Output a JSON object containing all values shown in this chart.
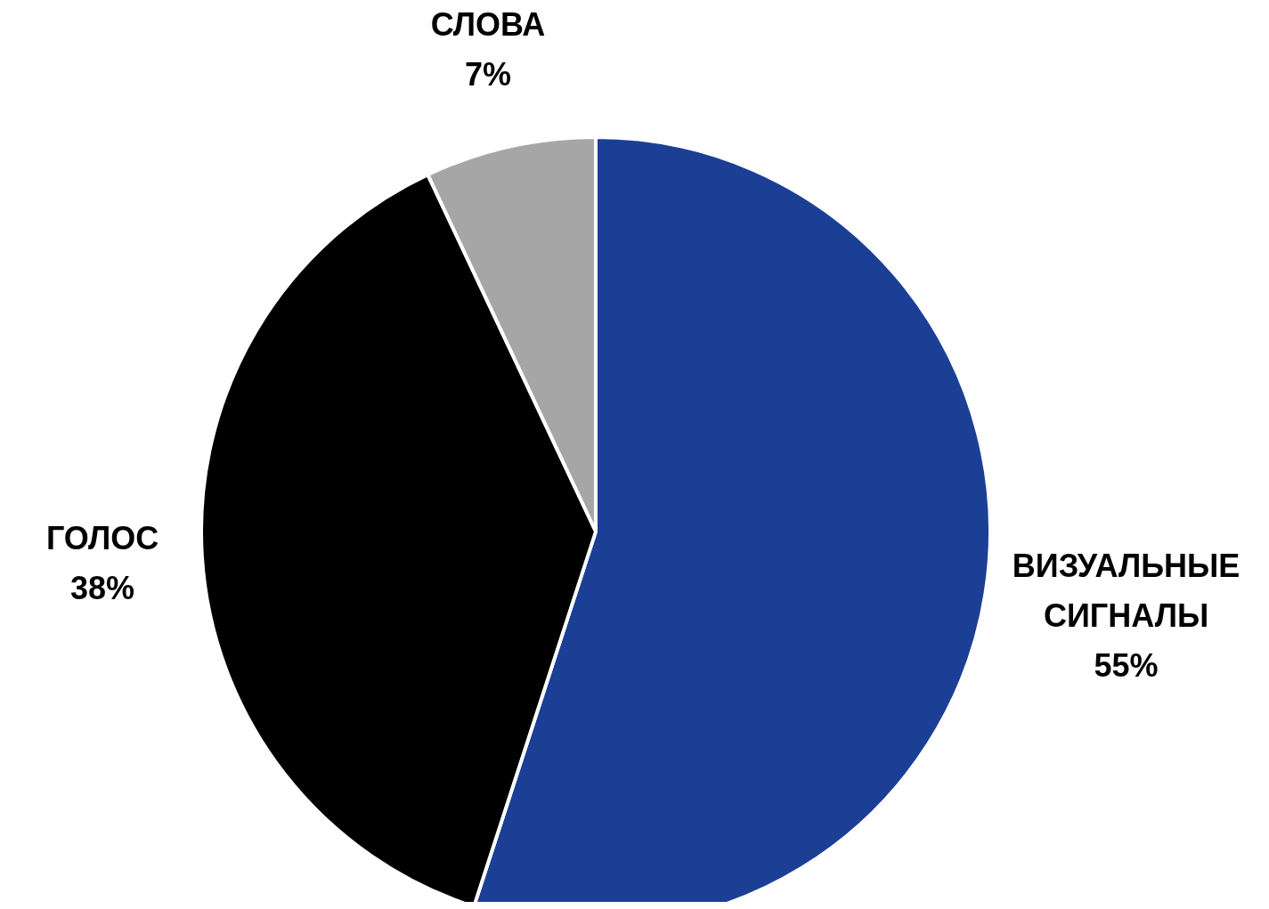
{
  "chart_data": {
    "type": "pie",
    "categories": [
      "ВИЗУАЛЬНЫЕ СИГНАЛЫ",
      "ГОЛОС",
      "СЛОВА"
    ],
    "values": [
      55,
      38,
      7
    ],
    "value_labels": [
      "55%",
      "38%",
      "7%"
    ],
    "colors": [
      "#1b3f95",
      "#000000",
      "#a6a6a6"
    ]
  }
}
